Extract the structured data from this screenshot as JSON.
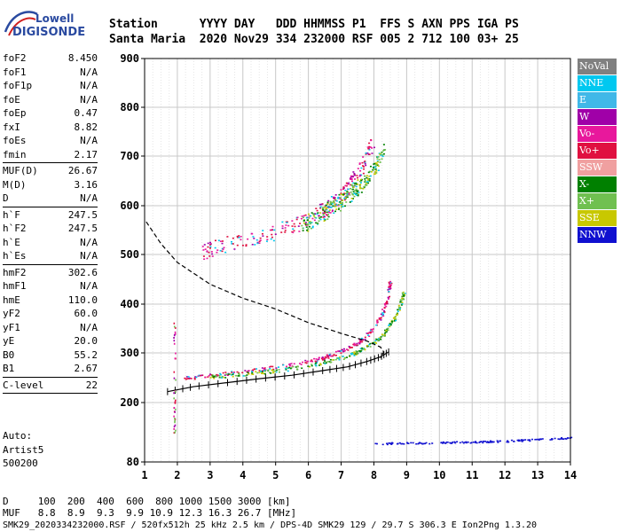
{
  "logo": {
    "line1": "Lowell",
    "line2": "DIGISONDE"
  },
  "header": {
    "labels_line": "Station      YYYY DAY   DDD HHMMSS P1  FFS S AXN PPS IGA PS",
    "values_line": "Santa Maria  2020 Nov29 334 232000 RSF 005 2 712 100 03+ 25"
  },
  "params": [
    {
      "label": "foF2",
      "value": "8.450"
    },
    {
      "label": "foF1",
      "value": "N/A"
    },
    {
      "label": "foF1p",
      "value": "N/A"
    },
    {
      "label": "foE",
      "value": "N/A"
    },
    {
      "label": "foEp",
      "value": "0.47"
    },
    {
      "label": "fxI",
      "value": "8.82"
    },
    {
      "label": "foEs",
      "value": "N/A"
    },
    {
      "label": "fmin",
      "value": "2.17",
      "sep_after": true
    },
    {
      "label": "MUF(D)",
      "value": "26.67"
    },
    {
      "label": "M(D)",
      "value": "3.16"
    },
    {
      "label": "D",
      "value": "N/A",
      "sep_after": true
    },
    {
      "label": "h`F",
      "value": "247.5"
    },
    {
      "label": "h`F2",
      "value": "247.5"
    },
    {
      "label": "h`E",
      "value": "N/A"
    },
    {
      "label": "h`Es",
      "value": "N/A",
      "sep_after": true
    },
    {
      "label": "hmF2",
      "value": "302.6"
    },
    {
      "label": "hmF1",
      "value": "N/A"
    },
    {
      "label": "hmE",
      "value": "110.0"
    },
    {
      "label": "yF2",
      "value": "60.0"
    },
    {
      "label": "yF1",
      "value": "N/A"
    },
    {
      "label": "yE",
      "value": "20.0"
    },
    {
      "label": "B0",
      "value": "55.2"
    },
    {
      "label": "B1",
      "value": "2.67",
      "sep_after": true
    },
    {
      "label": "C-level",
      "value": "22",
      "sep_after": true
    }
  ],
  "auto": {
    "line1": "Auto:",
    "line2": "Artist5",
    "line3": "500200"
  },
  "bottom": {
    "d_row": "D     100  200  400  600  800 1000 1500 3000 [km]",
    "muf_row": "MUF   8.8  8.9  9.3  9.9 10.9 12.3 16.3 26.7 [MHz]",
    "footer": "SMK29_2020334232000.RSF / 520fx512h 25 kHz 2.5 km / DPS-4D SMK29 129 / 29.7 S 306.3 E Ion2Png 1.3.20"
  },
  "legend": [
    {
      "name": "NoVal",
      "color": "#808080"
    },
    {
      "name": "NNE",
      "color": "#00c8f0"
    },
    {
      "name": "E",
      "color": "#40b8e8"
    },
    {
      "name": "W",
      "color": "#a000a8"
    },
    {
      "name": "Vo-",
      "color": "#e8189c"
    },
    {
      "name": "Vo+",
      "color": "#e01040"
    },
    {
      "name": "SSW",
      "color": "#f0a0a0"
    },
    {
      "name": "X-",
      "color": "#008000"
    },
    {
      "name": "X+",
      "color": "#70c050"
    },
    {
      "name": "SSE",
      "color": "#c8c800"
    },
    {
      "name": "NNW",
      "color": "#1010d0"
    }
  ],
  "chart_data": {
    "type": "scatter",
    "title": "",
    "xlabel": "",
    "ylabel": "",
    "xlim": [
      1,
      14
    ],
    "ylim": [
      80,
      900
    ],
    "x_ticks": [
      1,
      2,
      3,
      4,
      5,
      6,
      7,
      8,
      9,
      10,
      11,
      12,
      13,
      14
    ],
    "y_ticks": [
      80,
      200,
      300,
      400,
      500,
      600,
      700,
      800,
      900
    ],
    "grid": true,
    "series": [
      {
        "name": "Vo+",
        "kind": "trace",
        "x": [
          2.2,
          2.8,
          3.6,
          4.6,
          5.6,
          6.4,
          7.0,
          7.5,
          7.9,
          8.2,
          8.4,
          8.5
        ],
        "y": [
          250,
          254,
          260,
          268,
          278,
          290,
          305,
          320,
          345,
          375,
          410,
          452
        ]
      },
      {
        "name": "X+",
        "kind": "trace",
        "x": [
          3.0,
          4.0,
          5.0,
          6.0,
          6.8,
          7.4,
          7.9,
          8.3,
          8.6,
          8.8,
          8.9
        ],
        "y": [
          253,
          258,
          265,
          275,
          287,
          300,
          318,
          340,
          370,
          400,
          425
        ]
      },
      {
        "name": "Vo+",
        "kind": "trace",
        "x": [
          2.7,
          3.5,
          4.5,
          5.3,
          5.9,
          6.4,
          6.8,
          7.1,
          7.4,
          7.7,
          8.0
        ],
        "y": [
          505,
          523,
          537,
          555,
          570,
          590,
          610,
          630,
          655,
          690,
          740
        ]
      },
      {
        "name": "X+",
        "kind": "trace",
        "x": [
          5.8,
          6.3,
          6.8,
          7.2,
          7.6,
          8.0,
          8.3
        ],
        "y": [
          560,
          580,
          600,
          620,
          645,
          675,
          715
        ]
      },
      {
        "name": "NNW",
        "kind": "trace",
        "x": [
          8.0,
          9.0,
          10.0,
          11.0,
          12.0,
          13.0,
          14.0
        ],
        "y": [
          118,
          119,
          120,
          121,
          123,
          126,
          130
        ]
      },
      {
        "name": "profile",
        "kind": "profile",
        "x": [
          1.7,
          2.5,
          3.5,
          4.5,
          5.5,
          6.5,
          7.2,
          7.8,
          8.2,
          8.45
        ],
        "y": [
          222,
          232,
          240,
          248,
          255,
          265,
          272,
          283,
          292,
          302
        ]
      },
      {
        "name": "model",
        "kind": "dashed",
        "x": [
          1.05,
          1.5,
          2.0,
          3.0,
          4.0,
          5.0,
          6.0,
          7.0,
          7.8,
          8.2,
          8.3,
          8.2
        ],
        "y": [
          567,
          522,
          484,
          440,
          412,
          390,
          362,
          340,
          324,
          312,
          302,
          290
        ]
      }
    ]
  }
}
